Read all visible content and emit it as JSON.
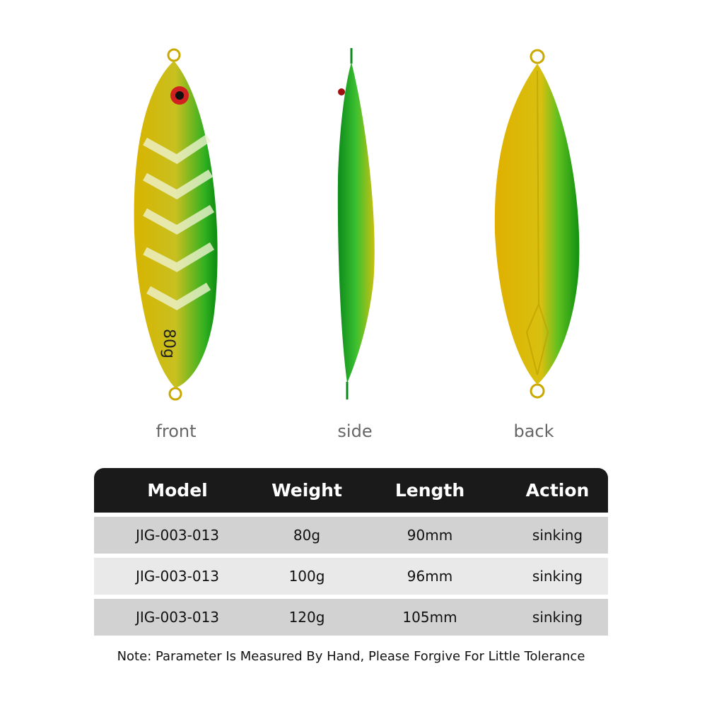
{
  "views": [
    {
      "label": "front",
      "marking": "80g"
    },
    {
      "label": "side"
    },
    {
      "label": "back"
    }
  ],
  "table": {
    "header": [
      "Model",
      "Weight",
      "Length",
      "Action"
    ],
    "rows": [
      [
        "JIG-003-013",
        "80g",
        "90mm",
        "sinking"
      ],
      [
        "JIG-003-013",
        "100g",
        "96mm",
        "sinking"
      ],
      [
        "JIG-003-013",
        "120g",
        "105mm",
        "sinking"
      ]
    ]
  },
  "note": "Note: Parameter Is Measured By Hand, Please Forgive For Little Tolerance"
}
